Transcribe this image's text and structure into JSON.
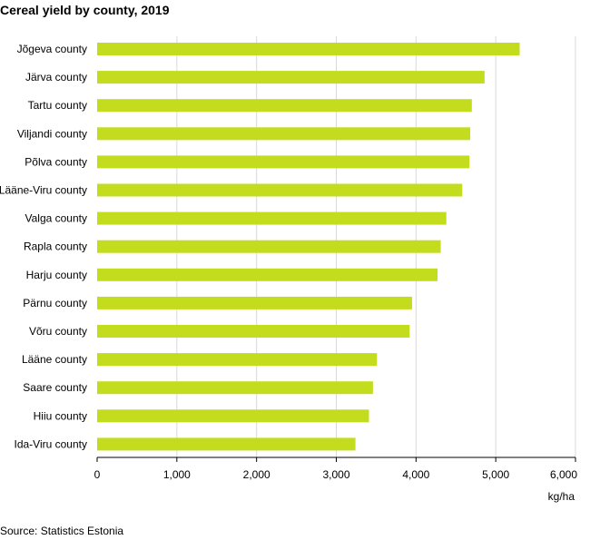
{
  "title": "Cereal yield by county, 2019",
  "source": "Source: Statistics Estonia",
  "chart_data": {
    "type": "bar",
    "orientation": "horizontal",
    "title": "Cereal yield by county, 2019",
    "xlabel": "kg/ha",
    "ylabel": "",
    "categories": [
      "Jõgeva county",
      "Järva county",
      "Tartu county",
      "Viljandi county",
      "Põlva county",
      "Lääne-Viru county",
      "Valga county",
      "Rapla county",
      "Harju county",
      "Pärnu county",
      "Võru county",
      "Lääne county",
      "Saare county",
      "Hiiu county",
      "Ida-Viru county"
    ],
    "values": [
      5300,
      4860,
      4700,
      4680,
      4670,
      4580,
      4380,
      4310,
      4270,
      3950,
      3920,
      3510,
      3460,
      3410,
      3240
    ],
    "xlim": [
      0,
      6000
    ],
    "x_ticks": [
      "0",
      "1,000",
      "2,000",
      "3,000",
      "4,000",
      "5,000",
      "6,000"
    ],
    "x_tick_values": [
      0,
      1000,
      2000,
      3000,
      4000,
      5000,
      6000
    ],
    "grid": "vertical",
    "legend": "none",
    "bar_color": "#c3dc1e",
    "grid_color": "#d9d9d9",
    "axis_color": "#000000"
  }
}
